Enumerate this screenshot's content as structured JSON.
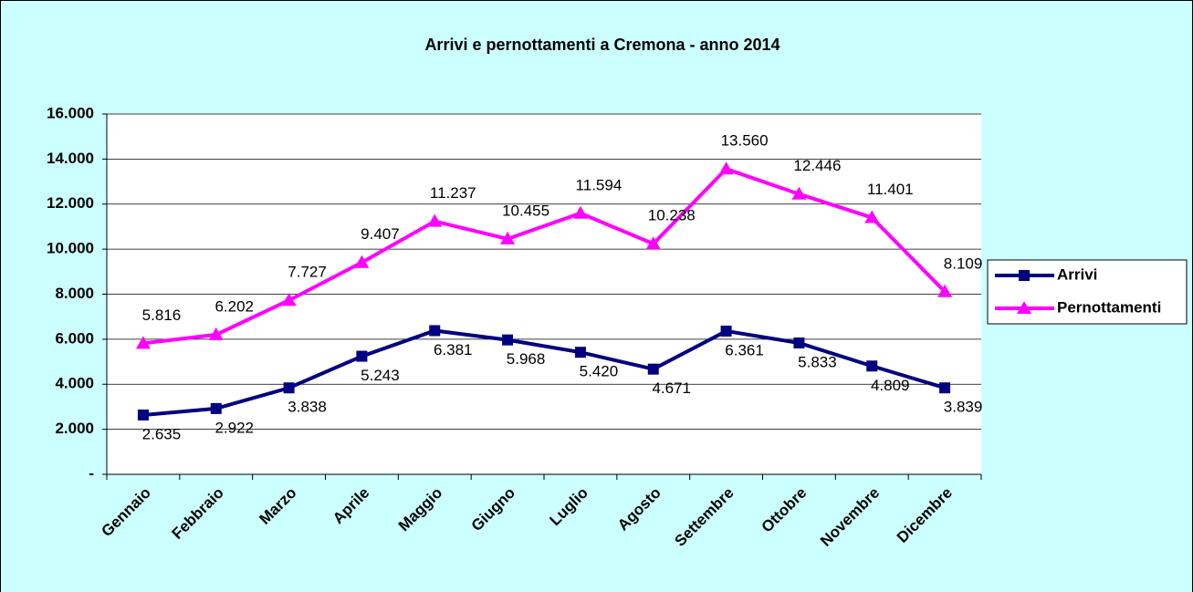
{
  "chart_data": {
    "type": "line",
    "title": "Arrivi e pernottamenti a Cremona - anno 2014",
    "categories": [
      "Gennaio",
      "Febbraio",
      "Marzo",
      "Aprile",
      "Maggio",
      "Giugno",
      "Luglio",
      "Agosto",
      "Settembre",
      "Ottobre",
      "Novembre",
      "Dicembre"
    ],
    "series": [
      {
        "name": "Arrivi",
        "color": "#000080",
        "marker": "square",
        "values": [
          2635,
          2922,
          3838,
          5243,
          6381,
          5968,
          5420,
          4671,
          6361,
          5833,
          4809,
          3839
        ],
        "value_labels": [
          "2.635",
          "2.922",
          "3.838",
          "5.243",
          "6.381",
          "5.968",
          "5.420",
          "4.671",
          "6.361",
          "5.833",
          "4.809",
          "3.839"
        ]
      },
      {
        "name": "Pernottamenti",
        "color": "#FF00FF",
        "marker": "triangle",
        "values": [
          5816,
          6202,
          7727,
          9407,
          11237,
          10455,
          11594,
          10238,
          13560,
          12446,
          11401,
          8109
        ],
        "value_labels": [
          "5.816",
          "6.202",
          "7.727",
          "9.407",
          "11.237",
          "10.455",
          "11.594",
          "10.238",
          "13.560",
          "12.446",
          "11.401",
          "8.109"
        ]
      }
    ],
    "ylim": [
      0,
      16000
    ],
    "yticks": [
      {
        "value": 0,
        "label": "-"
      },
      {
        "value": 2000,
        "label": "2.000"
      },
      {
        "value": 4000,
        "label": "4.000"
      },
      {
        "value": 6000,
        "label": "6.000"
      },
      {
        "value": 8000,
        "label": "8.000"
      },
      {
        "value": 10000,
        "label": "10.000"
      },
      {
        "value": 12000,
        "label": "12.000"
      },
      {
        "value": 14000,
        "label": "14.000"
      },
      {
        "value": 16000,
        "label": "16.000"
      }
    ],
    "grid": true,
    "legend": "right"
  }
}
